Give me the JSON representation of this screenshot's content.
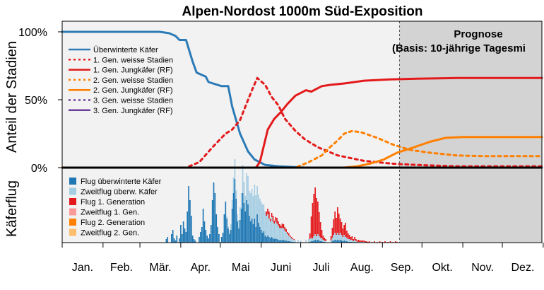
{
  "chart_data": {
    "type": "line",
    "title": "Alpen-Nordost 1000m Süd-Exposition",
    "ylabel": "Anteil der Stadien",
    "ylabel_lower": "Käferflug",
    "yticks": [
      "100%",
      "50%",
      "0%"
    ],
    "months": [
      "Jan.",
      "Feb.",
      "Mär.",
      "Apr.",
      "Mai",
      "Juni",
      "Juli",
      "Aug.",
      "Sep.",
      "Okt.",
      "Nov.",
      "Dez."
    ],
    "x_range_doy": [
      1,
      365
    ],
    "forecast_start_doy": 257,
    "forecast_label_1": "Prognose",
    "forecast_label_2": "(Basis: 10-jährige Tagesmi",
    "series": [
      {
        "name": "Überwinterte Käfer",
        "color": "#2c7bb6",
        "dash": false,
        "points": [
          [
            1,
            100
          ],
          [
            75,
            100
          ],
          [
            82,
            99
          ],
          [
            87,
            97
          ],
          [
            90,
            94
          ],
          [
            95,
            94
          ],
          [
            100,
            78
          ],
          [
            103,
            70
          ],
          [
            110,
            67
          ],
          [
            112,
            63
          ],
          [
            122,
            60
          ],
          [
            127,
            60
          ],
          [
            130,
            45
          ],
          [
            136,
            25
          ],
          [
            142,
            12
          ],
          [
            147,
            6
          ],
          [
            155,
            2
          ],
          [
            165,
            1
          ],
          [
            185,
            0
          ],
          [
            365,
            0
          ]
        ]
      },
      {
        "name": "1. Gen. weisse Stadien",
        "color": "#e31a1c",
        "dash": true,
        "points": [
          [
            1,
            0
          ],
          [
            95,
            0
          ],
          [
            105,
            4
          ],
          [
            115,
            15
          ],
          [
            125,
            25
          ],
          [
            130,
            28
          ],
          [
            136,
            35
          ],
          [
            140,
            45
          ],
          [
            145,
            57
          ],
          [
            149,
            66
          ],
          [
            155,
            61
          ],
          [
            160,
            52
          ],
          [
            165,
            46
          ],
          [
            170,
            36
          ],
          [
            178,
            27
          ],
          [
            185,
            21
          ],
          [
            195,
            15
          ],
          [
            210,
            9
          ],
          [
            230,
            5
          ],
          [
            250,
            3
          ],
          [
            270,
            2
          ],
          [
            300,
            1
          ],
          [
            365,
            1
          ]
        ]
      },
      {
        "name": "1. Gen. Jungkäfer (RF)",
        "color": "#e31a1c",
        "dash": false,
        "points": [
          [
            1,
            0
          ],
          [
            148,
            0
          ],
          [
            151,
            4
          ],
          [
            157,
            28
          ],
          [
            162,
            36
          ],
          [
            167,
            41
          ],
          [
            172,
            47
          ],
          [
            178,
            53
          ],
          [
            186,
            57
          ],
          [
            190,
            56
          ],
          [
            198,
            60
          ],
          [
            205,
            61
          ],
          [
            215,
            62
          ],
          [
            230,
            64
          ],
          [
            250,
            65
          ],
          [
            270,
            65.5
          ],
          [
            300,
            66
          ],
          [
            365,
            66
          ]
        ]
      },
      {
        "name": "2. Gen. weisse Stadien",
        "color": "#ff7f00",
        "dash": true,
        "points": [
          [
            1,
            0
          ],
          [
            178,
            0
          ],
          [
            188,
            4
          ],
          [
            198,
            9
          ],
          [
            203,
            14
          ],
          [
            210,
            20
          ],
          [
            215,
            25
          ],
          [
            221,
            27
          ],
          [
            228,
            26
          ],
          [
            240,
            22
          ],
          [
            252,
            17
          ],
          [
            265,
            13
          ],
          [
            280,
            11
          ],
          [
            300,
            9
          ],
          [
            320,
            8.5
          ],
          [
            365,
            8.5
          ]
        ]
      },
      {
        "name": "2. Gen. Jungkäfer (RF)",
        "color": "#ff7f00",
        "dash": false,
        "points": [
          [
            1,
            0
          ],
          [
            215,
            0
          ],
          [
            225,
            1
          ],
          [
            235,
            3
          ],
          [
            245,
            6
          ],
          [
            255,
            11
          ],
          [
            268,
            15
          ],
          [
            280,
            19
          ],
          [
            292,
            22
          ],
          [
            305,
            22.5
          ],
          [
            365,
            22.5
          ]
        ]
      },
      {
        "name": "3. Gen. weisse Stadien",
        "color": "#6a3d9a",
        "dash": true,
        "points": [
          [
            1,
            0
          ],
          [
            365,
            0
          ]
        ]
      },
      {
        "name": "3. Gen. Jungkäfer (RF)",
        "color": "#6a3d9a",
        "dash": false,
        "points": [
          [
            1,
            0
          ],
          [
            365,
            0
          ]
        ]
      }
    ],
    "flight_legend": [
      {
        "name": "Flug überwinterte Käfer",
        "color": "#1f78b4"
      },
      {
        "name": "Zweitflug überw. Käfer",
        "color": "#a6cee3"
      },
      {
        "name": "Flug 1. Generation",
        "color": "#e31a1c"
      },
      {
        "name": "Zweitflug 1. Gen.",
        "color": "#fb9a99"
      },
      {
        "name": "Flug 2. Generation",
        "color": "#ff7f00"
      },
      {
        "name": "Zweitflug 2. Gen.",
        "color": "#fdbf6f"
      }
    ],
    "flight_bars": [
      [
        80,
        5,
        0,
        0
      ],
      [
        81,
        8,
        0,
        0
      ],
      [
        84,
        12,
        0,
        0
      ],
      [
        85,
        18,
        0,
        0
      ],
      [
        86,
        6,
        0,
        0
      ],
      [
        87,
        3,
        0,
        0
      ],
      [
        88,
        10,
        0,
        0
      ],
      [
        90,
        6,
        0,
        0
      ],
      [
        91,
        25,
        0,
        0
      ],
      [
        92,
        12,
        0,
        0
      ],
      [
        93,
        30,
        0,
        0
      ],
      [
        94,
        20,
        0,
        0
      ],
      [
        95,
        15,
        0,
        0
      ],
      [
        96,
        44,
        0,
        0
      ],
      [
        97,
        80,
        0,
        0
      ],
      [
        98,
        60,
        0,
        0
      ],
      [
        99,
        38,
        0,
        0
      ],
      [
        100,
        10,
        0,
        0
      ],
      [
        101,
        5,
        0,
        0
      ],
      [
        102,
        3,
        0,
        0
      ],
      [
        105,
        8,
        0,
        0
      ],
      [
        106,
        15,
        0,
        0
      ],
      [
        107,
        22,
        0,
        0
      ],
      [
        108,
        48,
        0,
        0
      ],
      [
        109,
        30,
        0,
        0
      ],
      [
        110,
        18,
        0,
        0
      ],
      [
        111,
        10,
        0,
        0
      ],
      [
        112,
        6,
        0,
        0
      ],
      [
        113,
        12,
        0,
        0
      ],
      [
        114,
        25,
        0,
        0
      ],
      [
        115,
        60,
        0,
        0
      ],
      [
        116,
        85,
        0,
        0
      ],
      [
        117,
        70,
        0,
        0
      ],
      [
        118,
        40,
        0,
        0
      ],
      [
        119,
        22,
        0,
        0
      ],
      [
        120,
        12,
        0,
        0
      ],
      [
        122,
        8,
        0,
        0
      ],
      [
        123,
        14,
        0,
        0
      ],
      [
        124,
        40,
        0,
        0
      ],
      [
        125,
        58,
        0,
        0
      ],
      [
        126,
        34,
        3,
        0
      ],
      [
        127,
        20,
        3,
        0
      ],
      [
        128,
        12,
        5,
        0
      ],
      [
        129,
        18,
        8,
        0
      ],
      [
        130,
        48,
        12,
        0
      ],
      [
        131,
        70,
        22,
        0
      ],
      [
        132,
        90,
        28,
        0
      ],
      [
        133,
        62,
        12,
        0
      ],
      [
        134,
        30,
        10,
        0
      ],
      [
        135,
        20,
        12,
        0
      ],
      [
        136,
        32,
        18,
        0
      ],
      [
        137,
        48,
        22,
        0
      ],
      [
        138,
        70,
        40,
        0
      ],
      [
        139,
        56,
        30,
        0
      ],
      [
        140,
        44,
        22,
        0
      ],
      [
        141,
        60,
        38,
        0
      ],
      [
        142,
        54,
        40,
        0
      ],
      [
        143,
        38,
        35,
        0
      ],
      [
        144,
        30,
        40,
        0
      ],
      [
        145,
        34,
        42,
        0
      ],
      [
        146,
        26,
        40,
        0
      ],
      [
        147,
        34,
        48,
        0
      ],
      [
        148,
        22,
        45,
        0
      ],
      [
        149,
        40,
        40,
        0
      ],
      [
        150,
        28,
        40,
        0
      ],
      [
        151,
        22,
        40,
        0
      ],
      [
        152,
        18,
        40,
        0
      ],
      [
        153,
        14,
        40,
        0
      ],
      [
        154,
        16,
        38,
        0
      ],
      [
        155,
        10,
        34,
        0
      ],
      [
        156,
        8,
        30,
        6
      ],
      [
        157,
        10,
        30,
        8
      ],
      [
        158,
        8,
        26,
        10
      ],
      [
        159,
        6,
        24,
        4
      ],
      [
        160,
        8,
        28,
        6
      ],
      [
        161,
        6,
        24,
        8
      ],
      [
        162,
        5,
        22,
        4
      ],
      [
        163,
        6,
        24,
        6
      ],
      [
        164,
        5,
        22,
        8
      ],
      [
        165,
        4,
        20,
        6
      ],
      [
        166,
        3,
        18,
        5
      ],
      [
        167,
        4,
        16,
        4
      ],
      [
        168,
        3,
        18,
        6
      ],
      [
        169,
        4,
        16,
        6
      ],
      [
        170,
        3,
        14,
        5
      ],
      [
        171,
        3,
        12,
        4
      ],
      [
        172,
        2,
        10,
        3
      ],
      [
        173,
        2,
        8,
        3
      ],
      [
        174,
        2,
        6,
        2
      ],
      [
        175,
        1,
        5,
        2
      ],
      [
        176,
        1,
        4,
        1
      ],
      [
        177,
        1,
        3,
        1
      ],
      [
        178,
        0,
        3,
        0
      ],
      [
        180,
        0,
        4,
        0
      ],
      [
        182,
        0,
        3,
        0
      ],
      [
        186,
        0,
        4,
        0
      ],
      [
        188,
        0,
        5,
        0
      ],
      [
        189,
        1,
        4,
        8
      ],
      [
        190,
        2,
        5,
        30
      ],
      [
        191,
        2,
        4,
        50
      ],
      [
        192,
        3,
        6,
        60
      ],
      [
        193,
        4,
        8,
        66
      ],
      [
        194,
        3,
        6,
        54
      ],
      [
        195,
        4,
        8,
        46
      ],
      [
        196,
        3,
        6,
        34
      ],
      [
        197,
        2,
        5,
        22
      ],
      [
        198,
        2,
        4,
        12
      ],
      [
        199,
        1,
        3,
        6
      ],
      [
        200,
        1,
        2,
        4
      ],
      [
        201,
        0,
        2,
        3
      ],
      [
        205,
        0,
        3,
        6
      ],
      [
        206,
        2,
        5,
        14
      ],
      [
        207,
        3,
        8,
        22
      ],
      [
        208,
        4,
        10,
        30
      ],
      [
        209,
        3,
        8,
        24
      ],
      [
        210,
        4,
        10,
        36
      ],
      [
        211,
        3,
        8,
        30
      ],
      [
        212,
        4,
        10,
        20
      ],
      [
        213,
        3,
        8,
        18
      ],
      [
        214,
        2,
        6,
        12
      ],
      [
        215,
        3,
        8,
        14
      ],
      [
        216,
        2,
        6,
        20
      ],
      [
        217,
        2,
        5,
        10
      ],
      [
        218,
        1,
        4,
        8
      ],
      [
        219,
        1,
        4,
        6
      ],
      [
        220,
        1,
        3,
        4
      ],
      [
        221,
        1,
        3,
        5
      ],
      [
        222,
        0,
        2,
        3
      ],
      [
        223,
        1,
        3,
        4
      ],
      [
        224,
        0,
        2,
        3
      ],
      [
        225,
        0,
        1,
        2
      ],
      [
        226,
        0,
        1,
        3
      ],
      [
        227,
        0,
        1,
        2
      ],
      [
        228,
        0,
        1,
        2
      ],
      [
        229,
        0,
        1,
        2
      ],
      [
        230,
        0,
        1,
        2
      ],
      [
        231,
        0,
        0,
        2
      ],
      [
        232,
        0,
        0,
        2
      ],
      [
        233,
        0,
        0,
        1
      ],
      [
        234,
        0,
        0,
        2
      ],
      [
        236,
        0,
        0,
        1
      ],
      [
        238,
        0,
        0,
        2
      ],
      [
        240,
        0,
        0,
        1
      ],
      [
        242,
        0,
        0,
        2
      ],
      [
        244,
        0,
        0,
        1
      ],
      [
        246,
        0,
        0,
        2
      ],
      [
        248,
        0,
        0,
        1
      ],
      [
        250,
        0,
        0,
        2
      ],
      [
        252,
        0,
        0,
        1
      ],
      [
        254,
        0,
        0,
        2
      ],
      [
        255,
        0,
        0,
        1
      ]
    ]
  }
}
